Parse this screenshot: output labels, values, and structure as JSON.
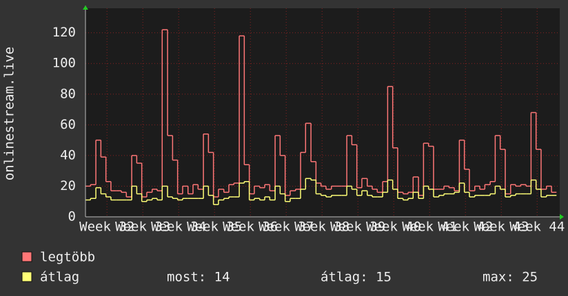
{
  "chart_data": {
    "type": "line",
    "y_label": "onlinestream.live",
    "x": [
      31.4,
      31.54,
      31.69,
      31.83,
      31.97,
      32.11,
      32.26,
      32.4,
      32.54,
      32.69,
      32.83,
      32.97,
      33.11,
      33.26,
      33.4,
      33.54,
      33.69,
      33.83,
      33.97,
      34.11,
      34.26,
      34.4,
      34.54,
      34.69,
      34.83,
      34.97,
      35.11,
      35.26,
      35.4,
      35.54,
      35.69,
      35.83,
      35.97,
      36.11,
      36.26,
      36.4,
      36.54,
      36.69,
      36.83,
      36.97,
      37.11,
      37.26,
      37.4,
      37.54,
      37.69,
      37.83,
      37.97,
      38.11,
      38.26,
      38.4,
      38.54,
      38.69,
      38.83,
      38.97,
      39.11,
      39.26,
      39.4,
      39.54,
      39.69,
      39.83,
      39.97,
      40.11,
      40.26,
      40.4,
      40.54,
      40.69,
      40.83,
      40.97,
      41.11,
      41.26,
      41.4,
      41.54,
      41.69,
      41.83,
      41.97,
      42.11,
      42.26,
      42.4,
      42.54,
      42.69,
      42.83,
      42.97,
      43.11,
      43.26,
      43.4,
      43.54,
      43.69,
      43.83,
      43.97,
      44.11,
      44.26,
      44.4
    ],
    "series": [
      {
        "name": "legtöbb",
        "color": "#ff7777",
        "values": [
          20,
          21,
          50,
          39,
          23,
          17,
          17,
          16,
          13,
          40,
          35,
          13,
          16,
          18,
          17,
          122,
          53,
          37,
          15,
          20,
          15,
          21,
          18,
          54,
          42,
          13,
          18,
          16,
          21,
          22,
          118,
          34,
          15,
          20,
          19,
          21,
          17,
          53,
          40,
          14,
          17,
          18,
          42,
          61,
          36,
          22,
          20,
          18,
          20,
          20,
          20,
          53,
          47,
          19,
          25,
          20,
          18,
          16,
          23,
          85,
          45,
          16,
          15,
          16,
          26,
          14,
          48,
          46,
          18,
          18,
          20,
          19,
          17,
          50,
          31,
          17,
          20,
          18,
          21,
          23,
          53,
          44,
          15,
          21,
          20,
          21,
          20,
          68,
          44,
          18,
          20,
          16
        ]
      },
      {
        "name": "átlag",
        "color": "#ffff77",
        "values": [
          11,
          12,
          19,
          15,
          13,
          11,
          11,
          11,
          11,
          20,
          15,
          10,
          11,
          12,
          11,
          20,
          13,
          12,
          11,
          12,
          12,
          12,
          12,
          20,
          14,
          8,
          11,
          12,
          13,
          13,
          22,
          23,
          11,
          12,
          11,
          13,
          11,
          20,
          15,
          10,
          12,
          12,
          18,
          25,
          24,
          15,
          14,
          13,
          14,
          14,
          14,
          20,
          18,
          14,
          17,
          14,
          13,
          13,
          16,
          24,
          18,
          12,
          11,
          12,
          16,
          12,
          20,
          18,
          13,
          14,
          15,
          15,
          16,
          22,
          16,
          13,
          14,
          14,
          14,
          15,
          20,
          18,
          13,
          14,
          15,
          15,
          15,
          24,
          18,
          13,
          14,
          14
        ]
      }
    ],
    "xlim": [
      31.4,
      44.63
    ],
    "xticks": [
      {
        "value": 32,
        "label": "Week 32"
      },
      {
        "value": 33,
        "label": "Week 33"
      },
      {
        "value": 34,
        "label": "Week 34"
      },
      {
        "value": 35,
        "label": "Week 35"
      },
      {
        "value": 36,
        "label": "Week 36"
      },
      {
        "value": 37,
        "label": "Week 37"
      },
      {
        "value": 38,
        "label": "Week 38"
      },
      {
        "value": 39,
        "label": "Week 39"
      },
      {
        "value": 40,
        "label": "Week 40"
      },
      {
        "value": 41,
        "label": "Week 41"
      },
      {
        "value": 42,
        "label": "Week 42"
      },
      {
        "value": 43,
        "label": "Week 43"
      },
      {
        "value": 44,
        "label": "Week 44"
      }
    ],
    "ylim": [
      0,
      136
    ],
    "yticks": [
      0,
      20,
      40,
      60,
      80,
      100,
      120
    ],
    "grid": true,
    "stats": [
      "most: 14",
      "átlag: 15",
      "max: 25"
    ]
  }
}
